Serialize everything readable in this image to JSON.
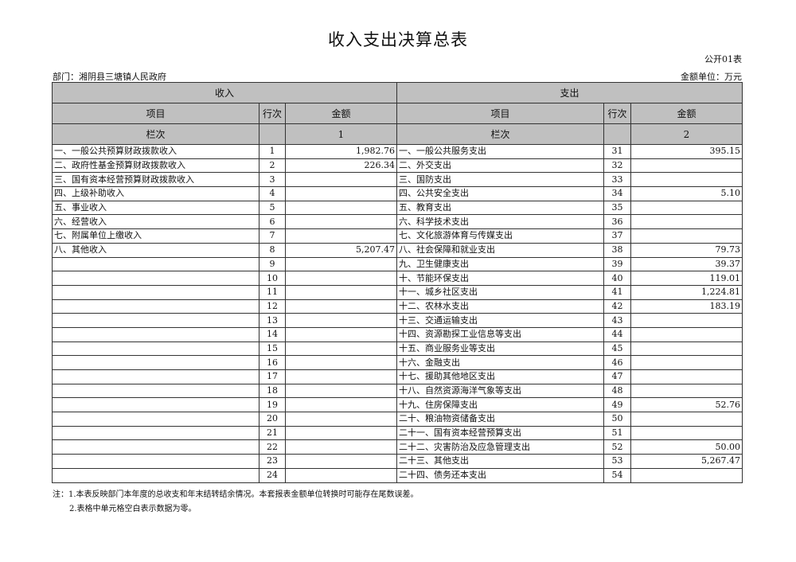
{
  "title": "收入支出决算总表",
  "form_code": "公开01表",
  "department": "部门：湘阴县三塘镇人民政府",
  "unit": "金额单位：万元",
  "headers": {
    "income": "收入",
    "expense": "支出",
    "item": "项目",
    "row_no": "行次",
    "amount": "金额",
    "column_no": "栏次",
    "col1": "1",
    "col2": "2"
  },
  "rows": [
    {
      "in_item": "一、一般公共预算财政拨款收入",
      "in_no": "1",
      "in_amt": "1,982.76",
      "ex_item": "一、一般公共服务支出",
      "ex_no": "31",
      "ex_amt": "395.15"
    },
    {
      "in_item": "二、政府性基金预算财政拨款收入",
      "in_no": "2",
      "in_amt": "226.34",
      "ex_item": "二、外交支出",
      "ex_no": "32",
      "ex_amt": ""
    },
    {
      "in_item": "三、国有资本经营预算财政拨款收入",
      "in_no": "3",
      "in_amt": "",
      "ex_item": "三、国防支出",
      "ex_no": "33",
      "ex_amt": ""
    },
    {
      "in_item": "四、上级补助收入",
      "in_no": "4",
      "in_amt": "",
      "ex_item": "四、公共安全支出",
      "ex_no": "34",
      "ex_amt": "5.10"
    },
    {
      "in_item": "五、事业收入",
      "in_no": "5",
      "in_amt": "",
      "ex_item": "五、教育支出",
      "ex_no": "35",
      "ex_amt": ""
    },
    {
      "in_item": "六、经营收入",
      "in_no": "6",
      "in_amt": "",
      "ex_item": "六、科学技术支出",
      "ex_no": "36",
      "ex_amt": ""
    },
    {
      "in_item": "七、附属单位上缴收入",
      "in_no": "7",
      "in_amt": "",
      "ex_item": "七、文化旅游体育与传媒支出",
      "ex_no": "37",
      "ex_amt": ""
    },
    {
      "in_item": "八、其他收入",
      "in_no": "8",
      "in_amt": "5,207.47",
      "ex_item": "八、社会保障和就业支出",
      "ex_no": "38",
      "ex_amt": "79.73"
    },
    {
      "in_item": "",
      "in_no": "9",
      "in_amt": "",
      "ex_item": "九、卫生健康支出",
      "ex_no": "39",
      "ex_amt": "39.37"
    },
    {
      "in_item": "",
      "in_no": "10",
      "in_amt": "",
      "ex_item": "十、节能环保支出",
      "ex_no": "40",
      "ex_amt": "119.01"
    },
    {
      "in_item": "",
      "in_no": "11",
      "in_amt": "",
      "ex_item": "十一、城乡社区支出",
      "ex_no": "41",
      "ex_amt": "1,224.81"
    },
    {
      "in_item": "",
      "in_no": "12",
      "in_amt": "",
      "ex_item": "十二、农林水支出",
      "ex_no": "42",
      "ex_amt": "183.19"
    },
    {
      "in_item": "",
      "in_no": "13",
      "in_amt": "",
      "ex_item": "十三、交通运输支出",
      "ex_no": "43",
      "ex_amt": ""
    },
    {
      "in_item": "",
      "in_no": "14",
      "in_amt": "",
      "ex_item": "十四、资源勘探工业信息等支出",
      "ex_no": "44",
      "ex_amt": ""
    },
    {
      "in_item": "",
      "in_no": "15",
      "in_amt": "",
      "ex_item": "十五、商业服务业等支出",
      "ex_no": "45",
      "ex_amt": ""
    },
    {
      "in_item": "",
      "in_no": "16",
      "in_amt": "",
      "ex_item": "十六、金融支出",
      "ex_no": "46",
      "ex_amt": ""
    },
    {
      "in_item": "",
      "in_no": "17",
      "in_amt": "",
      "ex_item": "十七、援助其他地区支出",
      "ex_no": "47",
      "ex_amt": ""
    },
    {
      "in_item": "",
      "in_no": "18",
      "in_amt": "",
      "ex_item": "十八、自然资源海洋气象等支出",
      "ex_no": "48",
      "ex_amt": ""
    },
    {
      "in_item": "",
      "in_no": "19",
      "in_amt": "",
      "ex_item": "十九、住房保障支出",
      "ex_no": "49",
      "ex_amt": "52.76"
    },
    {
      "in_item": "",
      "in_no": "20",
      "in_amt": "",
      "ex_item": "二十、粮油物资储备支出",
      "ex_no": "50",
      "ex_amt": ""
    },
    {
      "in_item": "",
      "in_no": "21",
      "in_amt": "",
      "ex_item": "二十一、国有资本经营预算支出",
      "ex_no": "51",
      "ex_amt": ""
    },
    {
      "in_item": "",
      "in_no": "22",
      "in_amt": "",
      "ex_item": "二十二、灾害防治及应急管理支出",
      "ex_no": "52",
      "ex_amt": "50.00"
    },
    {
      "in_item": "",
      "in_no": "23",
      "in_amt": "",
      "ex_item": "二十三、其他支出",
      "ex_no": "53",
      "ex_amt": "5,267.47"
    },
    {
      "in_item": "",
      "in_no": "24",
      "in_amt": "",
      "ex_item": "二十四、债务还本支出",
      "ex_no": "54",
      "ex_amt": ""
    }
  ],
  "notes": [
    "注：1.本表反映部门本年度的总收支和年末结转结余情况。本套报表金额单位转换时可能存在尾数误差。",
    "2.表格中单元格空白表示数据为零。"
  ]
}
